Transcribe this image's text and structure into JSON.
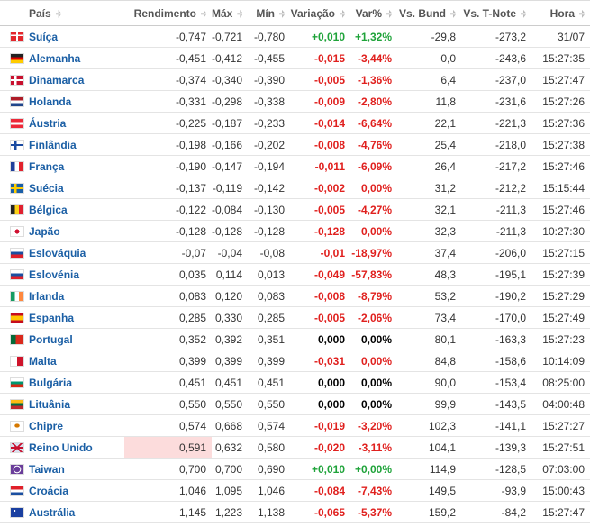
{
  "table": {
    "headers": [
      "País",
      "Rendimento",
      "Máx",
      "Mín",
      "Variação",
      "Var%",
      "Vs. Bund",
      "Vs. T-Note",
      "Hora"
    ],
    "rows": [
      [
        "Suíça",
        "-0,747",
        "-0,721",
        "-0,780",
        "+0,010",
        "+1,32%",
        "-29,8",
        "-273,2",
        "31/07"
      ],
      [
        "Alemanha",
        "-0,451",
        "-0,412",
        "-0,455",
        "-0,015",
        "-3,44%",
        "0,0",
        "-243,6",
        "15:27:35"
      ],
      [
        "Dinamarca",
        "-0,374",
        "-0,340",
        "-0,390",
        "-0,005",
        "-1,36%",
        "6,4",
        "-237,0",
        "15:27:47"
      ],
      [
        "Holanda",
        "-0,331",
        "-0,298",
        "-0,338",
        "-0,009",
        "-2,80%",
        "11,8",
        "-231,6",
        "15:27:26"
      ],
      [
        "Áustria",
        "-0,225",
        "-0,187",
        "-0,233",
        "-0,014",
        "-6,64%",
        "22,1",
        "-221,3",
        "15:27:36"
      ],
      [
        "Finlândia",
        "-0,198",
        "-0,166",
        "-0,202",
        "-0,008",
        "-4,76%",
        "25,4",
        "-218,0",
        "15:27:38"
      ],
      [
        "França",
        "-0,190",
        "-0,147",
        "-0,194",
        "-0,011",
        "-6,09%",
        "26,4",
        "-217,2",
        "15:27:46"
      ],
      [
        "Suécia",
        "-0,137",
        "-0,119",
        "-0,142",
        "-0,002",
        "0,00%",
        "31,2",
        "-212,2",
        "15:15:44"
      ],
      [
        "Bélgica",
        "-0,122",
        "-0,084",
        "-0,130",
        "-0,005",
        "-4,27%",
        "32,1",
        "-211,3",
        "15:27:46"
      ],
      [
        "Japão",
        "-0,128",
        "-0,128",
        "-0,128",
        "-0,128",
        "0,00%",
        "32,3",
        "-211,3",
        "10:27:30"
      ],
      [
        "Eslováquia",
        "-0,07",
        "-0,04",
        "-0,08",
        "-0,01",
        "-18,97%",
        "37,4",
        "-206,0",
        "15:27:15"
      ],
      [
        "Eslovénia",
        "0,035",
        "0,114",
        "0,013",
        "-0,049",
        "-57,83%",
        "48,3",
        "-195,1",
        "15:27:39"
      ],
      [
        "Irlanda",
        "0,083",
        "0,120",
        "0,083",
        "-0,008",
        "-8,79%",
        "53,2",
        "-190,2",
        "15:27:29"
      ],
      [
        "Espanha",
        "0,285",
        "0,330",
        "0,285",
        "-0,005",
        "-2,06%",
        "73,4",
        "-170,0",
        "15:27:49"
      ],
      [
        "Portugal",
        "0,352",
        "0,392",
        "0,351",
        "0,000",
        "0,00%",
        "80,1",
        "-163,3",
        "15:27:23"
      ],
      [
        "Malta",
        "0,399",
        "0,399",
        "0,399",
        "-0,031",
        "0,00%",
        "84,8",
        "-158,6",
        "10:14:09"
      ],
      [
        "Bulgária",
        "0,451",
        "0,451",
        "0,451",
        "0,000",
        "0,00%",
        "90,0",
        "-153,4",
        "08:25:00"
      ],
      [
        "Lituânia",
        "0,550",
        "0,550",
        "0,550",
        "0,000",
        "0,00%",
        "99,9",
        "-143,5",
        "04:00:48"
      ],
      [
        "Chipre",
        "0,574",
        "0,668",
        "0,574",
        "-0,019",
        "-3,20%",
        "102,3",
        "-141,1",
        "15:27:27"
      ],
      [
        "Reino Unido",
        "0,591",
        "0,632",
        "0,580",
        "-0,020",
        "-3,11%",
        "104,1",
        "-139,3",
        "15:27:51"
      ],
      [
        "Taiwan",
        "0,700",
        "0,700",
        "0,690",
        "+0,010",
        "+0,00%",
        "114,9",
        "-128,5",
        "07:03:00"
      ],
      [
        "Croácia",
        "1,046",
        "1,095",
        "1,046",
        "-0,084",
        "-7,43%",
        "149,5",
        "-93,9",
        "15:00:43"
      ],
      [
        "Austrália",
        "1,145",
        "1,223",
        "1,138",
        "-0,065",
        "-5,37%",
        "159,2",
        "-84,2",
        "15:27:47"
      ]
    ]
  }
}
